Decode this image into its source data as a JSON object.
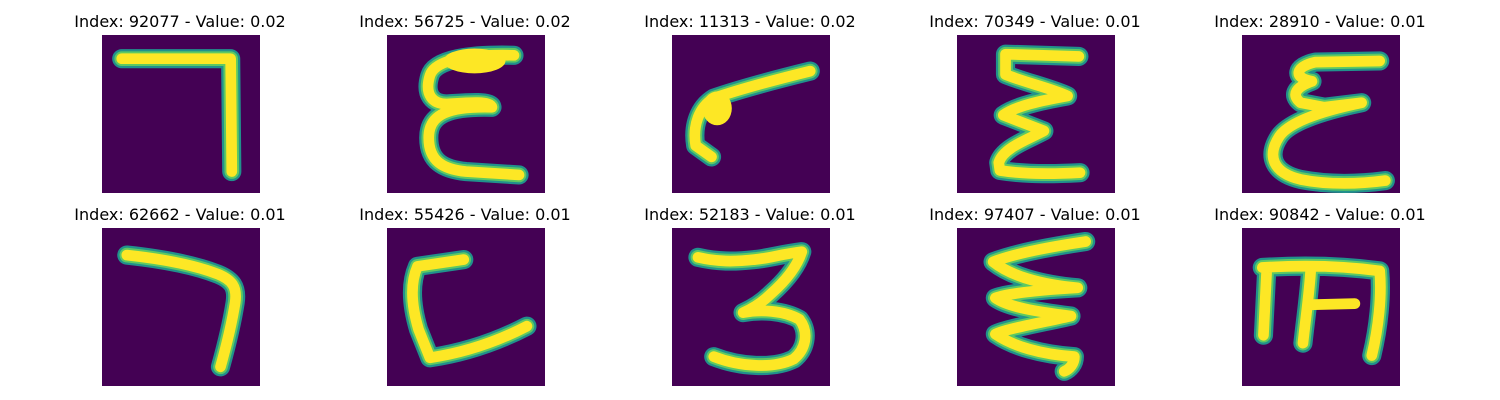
{
  "colors": {
    "background": "#440154",
    "stroke_core": "#fde725",
    "stroke_mid": "#5ec962",
    "stroke_edge": "#21918c"
  },
  "panels": [
    {
      "title": "Index: 92077 - Value: 0.02",
      "glyph": "seven-like-shape"
    },
    {
      "title": "Index: 56725 - Value: 0.02",
      "glyph": "epsilon-like-shape"
    },
    {
      "title": "Index: 11313 - Value: 0.02",
      "glyph": "slanted-seven-shape"
    },
    {
      "title": "Index: 70349 - Value: 0.01",
      "glyph": "sigma-like-shape"
    },
    {
      "title": "Index: 28910 - Value: 0.01",
      "glyph": "epsilon-like-shape"
    },
    {
      "title": "Index: 62662 - Value: 0.01",
      "glyph": "seven-like-shape"
    },
    {
      "title": "Index: 55426 - Value: 0.01",
      "glyph": "c-like-shape"
    },
    {
      "title": "Index: 52183 - Value: 0.01",
      "glyph": "three-like-shape"
    },
    {
      "title": "Index: 97407 - Value: 0.01",
      "glyph": "sigma-like-shape"
    },
    {
      "title": "Index: 90842 - Value: 0.01",
      "glyph": "m-like-shape"
    }
  ]
}
